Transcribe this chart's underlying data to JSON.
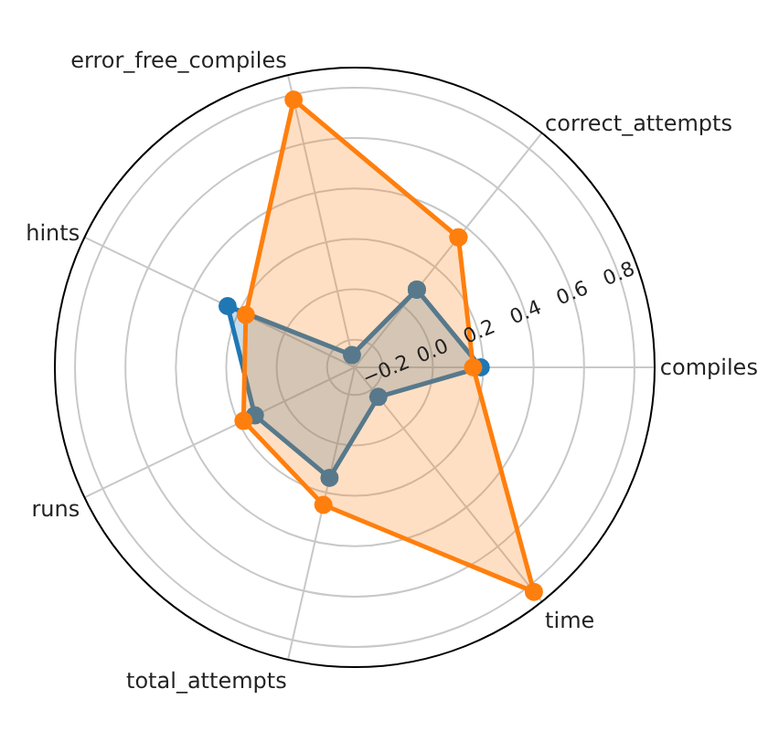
{
  "chart_data": {
    "type": "radar",
    "categories": [
      "correct_attempts",
      "compiles",
      "time",
      "total_attempts",
      "runs",
      "hints",
      "error_free_compiles"
    ],
    "series": [
      {
        "color": "#1f77b4",
        "values": [
          0.085,
          0.19,
          -0.16,
          0.14,
          0.13,
          0.25,
          -0.26
        ]
      },
      {
        "color": "#ff7f0e",
        "values": [
          0.35,
          0.16,
          0.83,
          0.25,
          0.18,
          0.17,
          0.78
        ]
      }
    ],
    "ylim": [
      -0.31,
      0.88
    ],
    "yticks": [
      {
        "value": -0.2,
        "label": "−0.2"
      },
      {
        "value": 0.0,
        "label": "0.0"
      },
      0.2,
      0.4,
      0.6,
      0.8
    ],
    "grid": true,
    "marker": "circle",
    "line_style": "solid"
  }
}
